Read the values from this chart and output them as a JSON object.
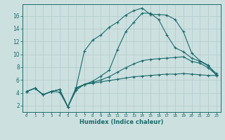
{
  "xlabel": "Humidex (Indice chaleur)",
  "bg_color": "#cde0e0",
  "grid_color": "#b8d0d0",
  "line_color": "#1a6b6b",
  "xlim": [
    -0.5,
    23.5
  ],
  "ylim": [
    1.0,
    17.8
  ],
  "xticks": [
    0,
    1,
    2,
    3,
    4,
    5,
    6,
    7,
    8,
    9,
    10,
    11,
    12,
    13,
    14,
    15,
    16,
    17,
    18,
    19,
    20,
    21,
    22,
    23
  ],
  "yticks": [
    2,
    4,
    6,
    8,
    10,
    12,
    14,
    16
  ],
  "line1_x": [
    0,
    1,
    2,
    3,
    4,
    5,
    6,
    7,
    8,
    9,
    10,
    11,
    12,
    13,
    14,
    15,
    16,
    17,
    18,
    19,
    20,
    21,
    22,
    23
  ],
  "line1_y": [
    4.2,
    4.7,
    3.7,
    4.2,
    4.1,
    1.8,
    4.4,
    5.3,
    5.5,
    5.7,
    5.9,
    6.1,
    6.3,
    6.5,
    6.6,
    6.7,
    6.8,
    6.9,
    6.9,
    7.0,
    6.9,
    6.8,
    6.7,
    6.7
  ],
  "line2_x": [
    0,
    1,
    2,
    3,
    4,
    5,
    6,
    7,
    8,
    9,
    10,
    11,
    12,
    13,
    14,
    15,
    16,
    17,
    18,
    19,
    20,
    21,
    22,
    23
  ],
  "line2_y": [
    4.2,
    4.7,
    3.7,
    4.2,
    4.5,
    1.8,
    4.6,
    5.3,
    5.6,
    6.0,
    6.5,
    7.2,
    7.9,
    8.5,
    9.0,
    9.2,
    9.3,
    9.4,
    9.5,
    9.6,
    8.9,
    8.6,
    7.9,
    6.8
  ],
  "line3_x": [
    0,
    1,
    2,
    3,
    4,
    5,
    6,
    7,
    8,
    9,
    10,
    11,
    12,
    13,
    14,
    15,
    16,
    17,
    18,
    19,
    20,
    21,
    22,
    23
  ],
  "line3_y": [
    4.2,
    4.7,
    3.7,
    4.2,
    4.5,
    1.8,
    4.8,
    5.3,
    5.8,
    6.6,
    7.5,
    10.7,
    13.5,
    15.0,
    16.4,
    16.4,
    15.4,
    13.0,
    11.0,
    10.4,
    9.4,
    8.9,
    8.2,
    7.0
  ],
  "line4_x": [
    0,
    1,
    2,
    3,
    4,
    5,
    6,
    7,
    8,
    9,
    10,
    11,
    12,
    13,
    14,
    15,
    16,
    17,
    18,
    19,
    20,
    21,
    22,
    23
  ],
  "line4_y": [
    4.2,
    4.7,
    3.7,
    4.2,
    4.5,
    1.8,
    4.8,
    10.5,
    12.2,
    13.0,
    14.2,
    15.0,
    16.1,
    16.8,
    17.2,
    16.2,
    16.2,
    16.1,
    15.4,
    13.5,
    10.2,
    9.0,
    8.3,
    6.7
  ]
}
